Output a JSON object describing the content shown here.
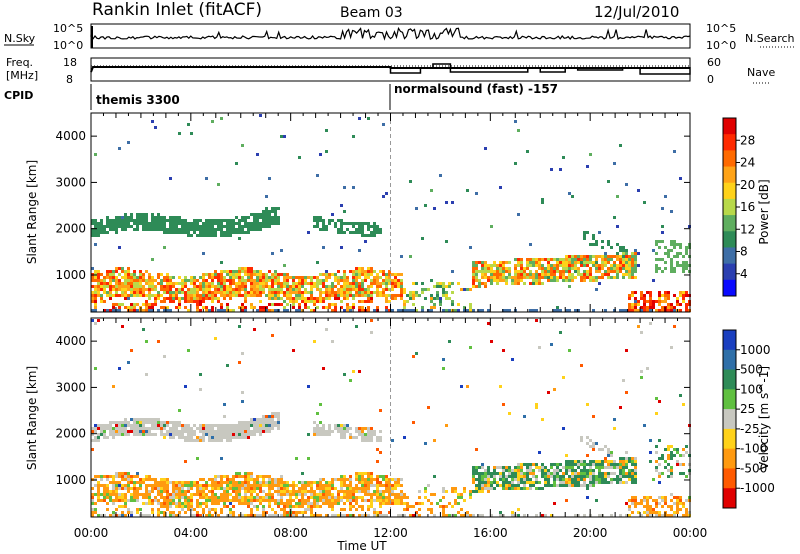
{
  "header": {
    "station": "Rankin Inlet (fitACF)",
    "beam": "Beam 03",
    "date": "12/Jul/2010"
  },
  "noise_panel": {
    "left_label": "N.Sky",
    "left_ticks": [
      "10^5",
      "10^0"
    ],
    "right_ticks": [
      "10^5",
      "10^0"
    ],
    "right_label": "N.Search"
  },
  "freq_panel": {
    "left_label": "Freq.",
    "left_unit": "[MHz]",
    "left_ticks": [
      "18",
      "8"
    ],
    "right_ticks": [
      "60",
      "0"
    ],
    "right_label": "Nave"
  },
  "cpid": {
    "label": "CPID",
    "segments": [
      {
        "name": "themis 3300",
        "start_hour": 0
      },
      {
        "name": "normalsound (fast) -157",
        "start_hour": 12
      }
    ]
  },
  "chart_data": [
    {
      "type": "heatmap",
      "title": "Power",
      "ylabel": "Slant Range [km]",
      "xlabel": "",
      "x_range_hours": [
        0,
        24
      ],
      "y_range_km": [
        200,
        4500
      ],
      "y_ticks": [
        "1000",
        "2000",
        "3000",
        "4000"
      ],
      "x_tick_labels": [
        "00:00",
        "04:00",
        "08:00",
        "12:00",
        "16:00",
        "20:00",
        "00:00"
      ],
      "colorbar": {
        "label": "Power [dB]",
        "ticks": [
          "4",
          "8",
          "12",
          "16",
          "20",
          "24",
          "28"
        ],
        "colors": [
          "#0a0aff",
          "#2b3fb0",
          "#3e6ea6",
          "#2e8b57",
          "#5fae5f",
          "#b8d94a",
          "#ffd21a",
          "#ffa317",
          "#ff6a00",
          "#ff2a00",
          "#e00000"
        ]
      },
      "bands": [
        {
          "range_km": [
            1700,
            2300
          ],
          "hours": [
            0,
            7.5
          ],
          "level": "low"
        },
        {
          "range_km": [
            1750,
            2200
          ],
          "hours": [
            8.8,
            11.5
          ],
          "level": "low"
        },
        {
          "range_km": [
            500,
            1100
          ],
          "hours": [
            0,
            12
          ],
          "level": "medium-high"
        },
        {
          "range_km": [
            800,
            1500
          ],
          "hours": [
            15.5,
            22
          ],
          "level": "medium-high"
        },
        {
          "range_km": [
            200,
            700
          ],
          "hours": [
            21.5,
            24
          ],
          "level": "high"
        }
      ]
    },
    {
      "type": "heatmap",
      "title": "Velocity",
      "ylabel": "Slant Range [km]",
      "xlabel": "Time UT",
      "x_range_hours": [
        0,
        24
      ],
      "y_range_km": [
        200,
        4500
      ],
      "y_ticks": [
        "1000",
        "2000",
        "3000",
        "4000"
      ],
      "x_tick_labels": [
        "00:00",
        "04:00",
        "08:00",
        "12:00",
        "16:00",
        "20:00",
        "00:00"
      ],
      "colorbar": {
        "label": "Velocity [m s^-1]",
        "ticks": [
          "1000",
          "500",
          "100",
          "25",
          "-25",
          "-100",
          "-500",
          "-1000"
        ],
        "colors": [
          "#1a3fbf",
          "#2f6fa8",
          "#2e8b57",
          "#60c040",
          "#c8c8c0",
          "#ffd21a",
          "#ff9a10",
          "#ff5a00",
          "#e00000"
        ]
      },
      "bands": [
        {
          "range_km": [
            1700,
            2300
          ],
          "hours": [
            0,
            7.5
          ],
          "level": "ground-scatter"
        },
        {
          "range_km": [
            500,
            1100
          ],
          "hours": [
            0,
            12
          ],
          "level": "negative"
        },
        {
          "range_km": [
            800,
            1400
          ],
          "hours": [
            15,
            20
          ],
          "level": "positive"
        }
      ]
    }
  ]
}
